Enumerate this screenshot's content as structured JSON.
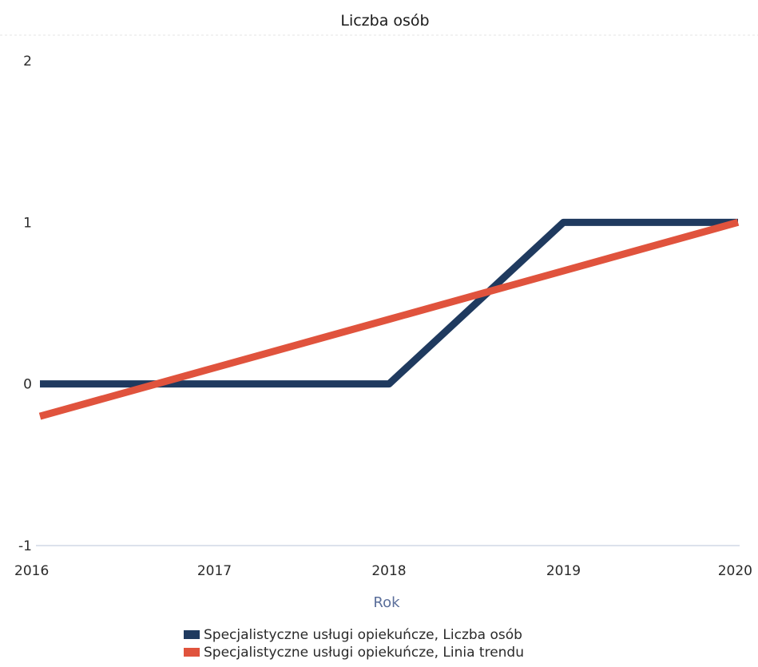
{
  "chart_data": {
    "type": "line",
    "title": "Liczba osób",
    "xlabel": "Rok",
    "ylabel": "",
    "x": [
      "2016",
      "2017",
      "2018",
      "2019",
      "2020"
    ],
    "ylim": [
      -1,
      2
    ],
    "yticks": [
      "2",
      "1",
      "0",
      "-1"
    ],
    "grid": "horizontal",
    "legend_position": "bottom",
    "series": [
      {
        "name": "Specjalistyczne usługi opiekuńcze, Liczba osób",
        "values": [
          0,
          0,
          0,
          1,
          1
        ],
        "color": "#1f3a5f"
      },
      {
        "name": "Specjalistyczne usługi opiekuńcze, Linia trendu",
        "values": [
          -0.2,
          0.1,
          0.4,
          0.7,
          1.0
        ],
        "color": "#e0533d"
      }
    ]
  }
}
